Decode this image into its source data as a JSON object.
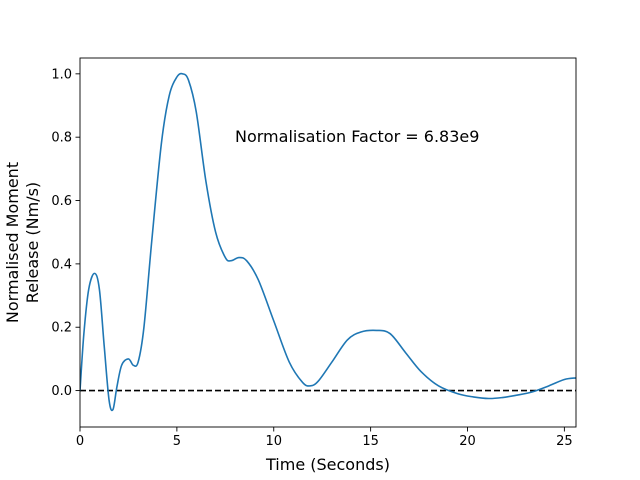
{
  "chart_data": {
    "type": "line",
    "title": "",
    "xlabel": "Time (Seconds)",
    "ylabel_lines": [
      "Normalised Moment",
      "Release (Nm/s)"
    ],
    "xlim": [
      0,
      25.6
    ],
    "ylim": [
      -0.115,
      1.05
    ],
    "xticks": [
      0,
      5,
      10,
      15,
      20,
      25
    ],
    "xtick_labels": [
      "0",
      "5",
      "10",
      "15",
      "20",
      "25"
    ],
    "yticks": [
      0.0,
      0.2,
      0.4,
      0.6,
      0.8,
      1.0
    ],
    "ytick_labels": [
      "0.0",
      "0.2",
      "0.4",
      "0.6",
      "0.8",
      "1.0"
    ],
    "grid": false,
    "annotation": {
      "text": "Normalisation Factor = 6.83e9",
      "x": 8.0,
      "y": 0.8
    },
    "reference_line": {
      "y": 0.0,
      "style": "dashed",
      "color": "#000000"
    },
    "series": [
      {
        "color": "#1f77b4",
        "x": [
          0.0,
          0.2,
          0.45,
          0.75,
          1.0,
          1.25,
          1.5,
          1.7,
          1.9,
          2.15,
          2.5,
          2.75,
          3.0,
          3.3,
          3.7,
          4.2,
          4.6,
          5.0,
          5.3,
          5.6,
          6.0,
          6.5,
          7.0,
          7.5,
          7.8,
          8.2,
          8.6,
          9.2,
          10.0,
          10.8,
          11.5,
          11.9,
          12.3,
          13.0,
          13.8,
          14.5,
          15.3,
          16.0,
          16.8,
          17.6,
          18.5,
          19.5,
          20.3,
          21.1,
          21.8,
          22.5,
          23.3,
          24.2,
          25.0,
          25.6
        ],
        "y": [
          0.0,
          0.18,
          0.32,
          0.37,
          0.32,
          0.14,
          -0.03,
          -0.06,
          0.01,
          0.08,
          0.1,
          0.08,
          0.09,
          0.2,
          0.47,
          0.78,
          0.93,
          0.99,
          1.0,
          0.98,
          0.88,
          0.66,
          0.5,
          0.42,
          0.41,
          0.42,
          0.41,
          0.35,
          0.22,
          0.09,
          0.025,
          0.015,
          0.03,
          0.09,
          0.16,
          0.185,
          0.19,
          0.18,
          0.12,
          0.06,
          0.015,
          -0.01,
          -0.02,
          -0.025,
          -0.022,
          -0.015,
          -0.005,
          0.015,
          0.035,
          0.04
        ]
      }
    ]
  }
}
